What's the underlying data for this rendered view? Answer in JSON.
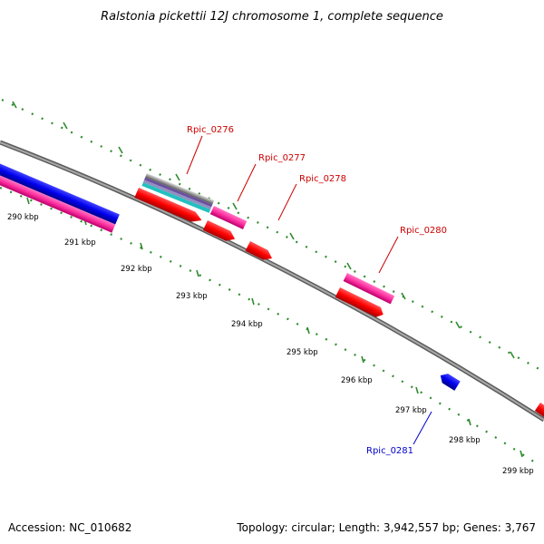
{
  "title": "Ralstonia pickettii 12J chromosome 1, complete sequence",
  "footer": {
    "accession": "Accession: NC_010682",
    "summary": "Topology: circular; Length: 3,942,557 bp; Genes: 3,767"
  },
  "scale_labels": [
    "290 kbp",
    "291 kbp",
    "292 kbp",
    "293 kbp",
    "294 kbp",
    "295 kbp",
    "296 kbp",
    "297 kbp",
    "298 kbp",
    "299 kbp"
  ],
  "gene_labels": [
    {
      "text": "Rpic_0276",
      "color": "#cc0000"
    },
    {
      "text": "Rpic_0277",
      "color": "#cc0000"
    },
    {
      "text": "Rpic_0278",
      "color": "#cc0000"
    },
    {
      "text": "Rpic_0280",
      "color": "#cc0000"
    },
    {
      "text": "Rpic_0281",
      "color": "#0000cc"
    }
  ],
  "colors": {
    "backbone": "#808080",
    "tick": "#2e8b2e",
    "forward_cds": "#ff0000",
    "forward_rna": "#ff33a8",
    "reverse_cds": "#0000ee",
    "reverse_rna": "#ff33a8"
  }
}
